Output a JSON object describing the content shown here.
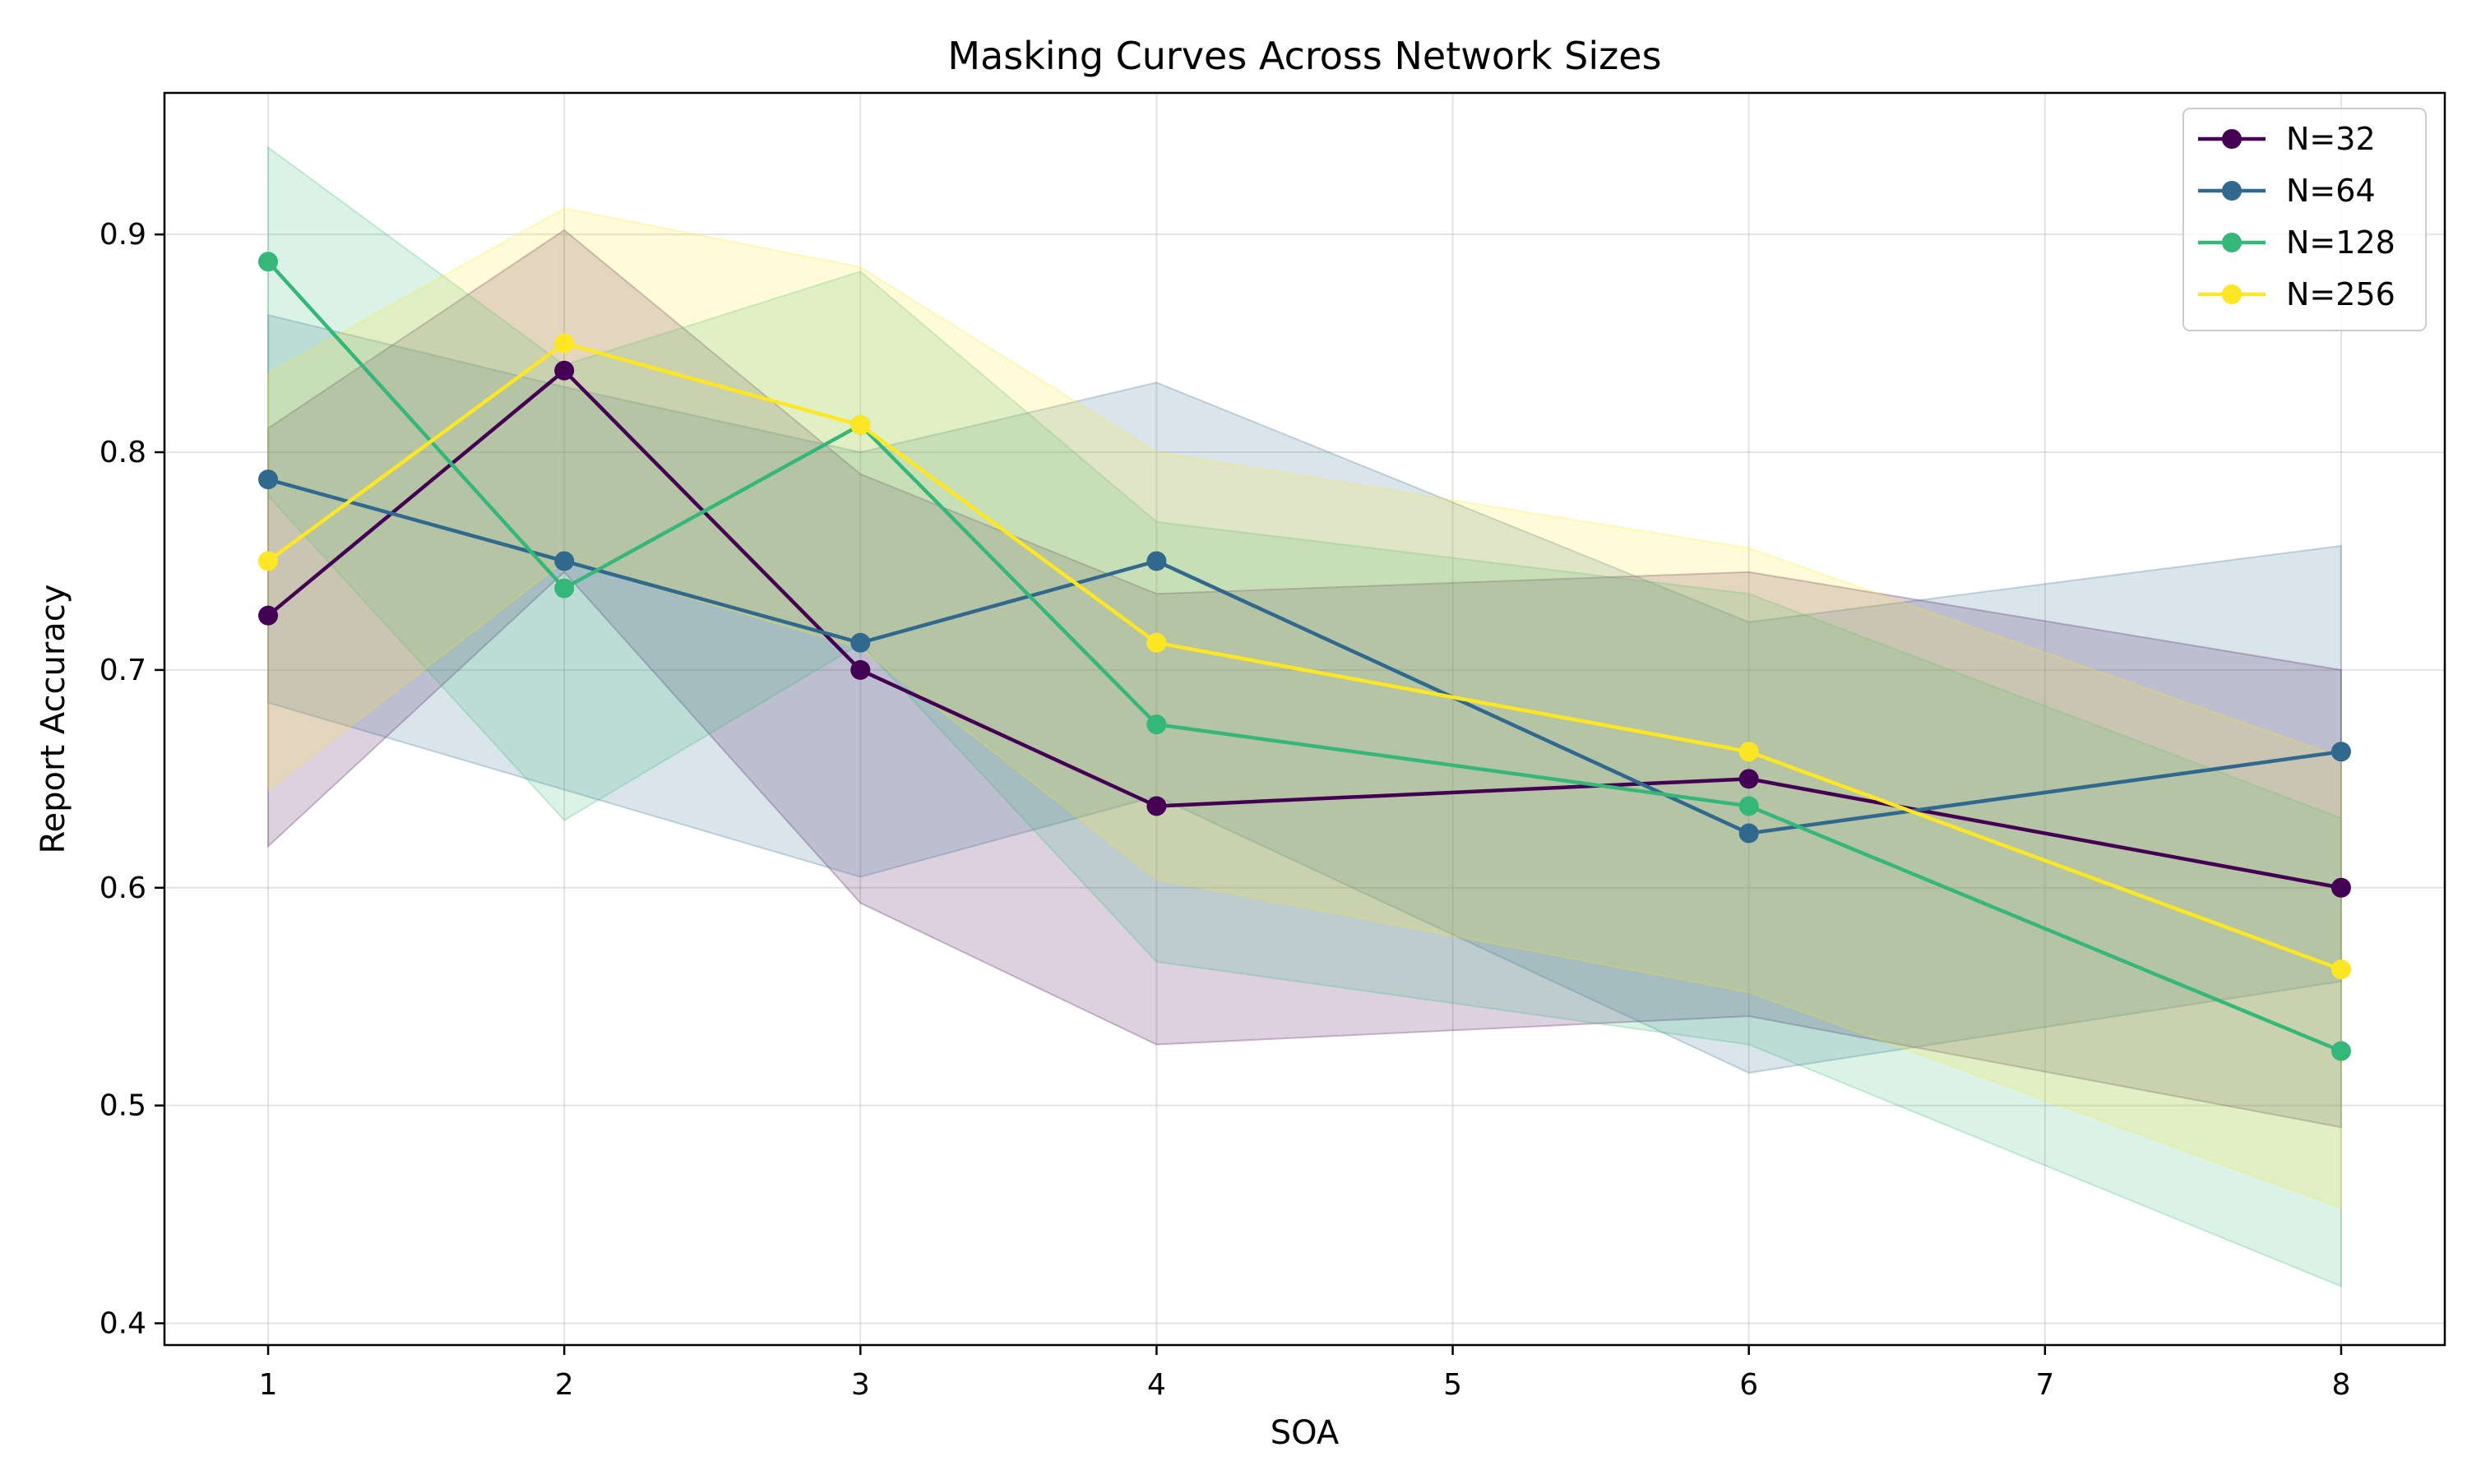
{
  "chart_data": {
    "type": "line",
    "title": "Masking Curves Across Network Sizes",
    "xlabel": "SOA",
    "ylabel": "Report Accuracy",
    "xlim": [
      0.65,
      8.35
    ],
    "ylim": [
      0.39,
      0.965
    ],
    "xticks": [
      1,
      2,
      3,
      4,
      5,
      6,
      7,
      8
    ],
    "yticks": [
      0.4,
      0.5,
      0.6,
      0.7,
      0.8,
      0.9
    ],
    "xtick_labels": [
      "1",
      "2",
      "3",
      "4",
      "5",
      "6",
      "7",
      "8"
    ],
    "ytick_labels": [
      "0.4",
      "0.5",
      "0.6",
      "0.7",
      "0.8",
      "0.9"
    ],
    "grid": true,
    "legend_position": "top-right",
    "x": [
      1,
      2,
      3,
      4,
      6,
      8
    ],
    "series": [
      {
        "name": "N=32",
        "color": "#440154",
        "values": [
          0.725,
          0.8375,
          0.7,
          0.6375,
          0.65,
          0.6
        ],
        "band_low": [
          0.619,
          0.745,
          0.593,
          0.528,
          0.541,
          0.49
        ],
        "band_high": [
          0.811,
          0.902,
          0.79,
          0.735,
          0.745,
          0.7
        ]
      },
      {
        "name": "N=64",
        "color": "#31688e",
        "values": [
          0.7875,
          0.75,
          0.7125,
          0.75,
          0.625,
          0.6625
        ],
        "band_low": [
          0.685,
          0.645,
          0.605,
          0.642,
          0.515,
          0.557
        ],
        "band_high": [
          0.863,
          0.83,
          0.8,
          0.832,
          0.722,
          0.757
        ]
      },
      {
        "name": "N=128",
        "color": "#35b779",
        "values": [
          0.8875,
          0.7375,
          0.8125,
          0.675,
          0.6375,
          0.525
        ],
        "band_low": [
          0.78,
          0.631,
          0.712,
          0.566,
          0.528,
          0.417
        ],
        "band_high": [
          0.94,
          0.84,
          0.883,
          0.768,
          0.735,
          0.632
        ]
      },
      {
        "name": "N=256",
        "color": "#fde725",
        "values": [
          0.75,
          0.85,
          0.8125,
          0.7125,
          0.6625,
          0.5625
        ],
        "band_low": [
          0.645,
          0.75,
          0.71,
          0.604,
          0.552,
          0.453
        ],
        "band_high": [
          0.836,
          0.912,
          0.885,
          0.8,
          0.756,
          0.66
        ]
      }
    ]
  }
}
